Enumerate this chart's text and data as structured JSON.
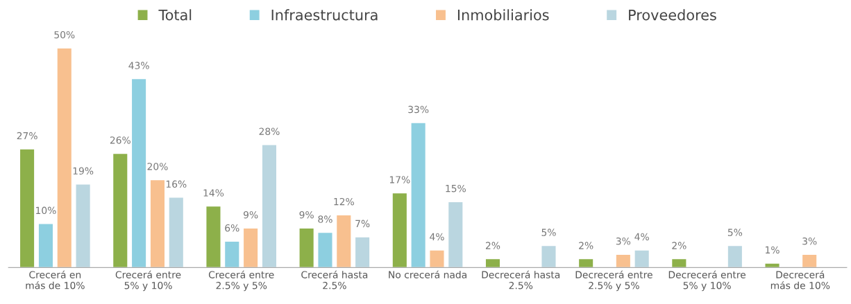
{
  "chart_data": {
    "type": "bar",
    "categories": [
      "Crecerá en\nmás de 10%",
      "Crecerá entre\n5% y 10%",
      "Crecerá entre\n2.5% y 5%",
      "Crecerá hasta\n2.5%",
      "No crecerá nada",
      "Decrecerá hasta\n2.5%",
      "Decrecerá entre\n2.5% y 5%",
      "Decrecerá entre\n5% y 10%",
      "Decrecerá\nmás de 10%"
    ],
    "series": [
      {
        "name": "Total",
        "color": "#8db04a",
        "values": [
          27,
          26,
          14,
          9,
          17,
          2,
          2,
          2,
          1
        ],
        "value_labels": [
          "27%",
          "26%",
          "14%",
          "9%",
          "17%",
          "2%",
          "2%",
          "2%",
          "1%"
        ]
      },
      {
        "name": "Infraestructura",
        "color": "#8dcfe0",
        "values": [
          10,
          43,
          6,
          8,
          33,
          null,
          null,
          null,
          null
        ],
        "value_labels": [
          "10%",
          "43%",
          "6%",
          "8%",
          "33%",
          null,
          null,
          null,
          null
        ]
      },
      {
        "name": "Inmobiliarios",
        "color": "#f8c08f",
        "values": [
          50,
          20,
          9,
          12,
          4,
          null,
          3,
          null,
          3
        ],
        "value_labels": [
          "50%",
          "20%",
          "9%",
          "12%",
          "4%",
          null,
          "3%",
          null,
          "3%"
        ]
      },
      {
        "name": "Proveedores",
        "color": "#bad6e0",
        "values": [
          19,
          16,
          28,
          7,
          15,
          5,
          4,
          5,
          null
        ],
        "value_labels": [
          "19%",
          "16%",
          "28%",
          "7%",
          "15%",
          "5%",
          "4%",
          "5%",
          null
        ]
      }
    ],
    "legend": "top",
    "grid": false,
    "tick_labels": "x"
  }
}
